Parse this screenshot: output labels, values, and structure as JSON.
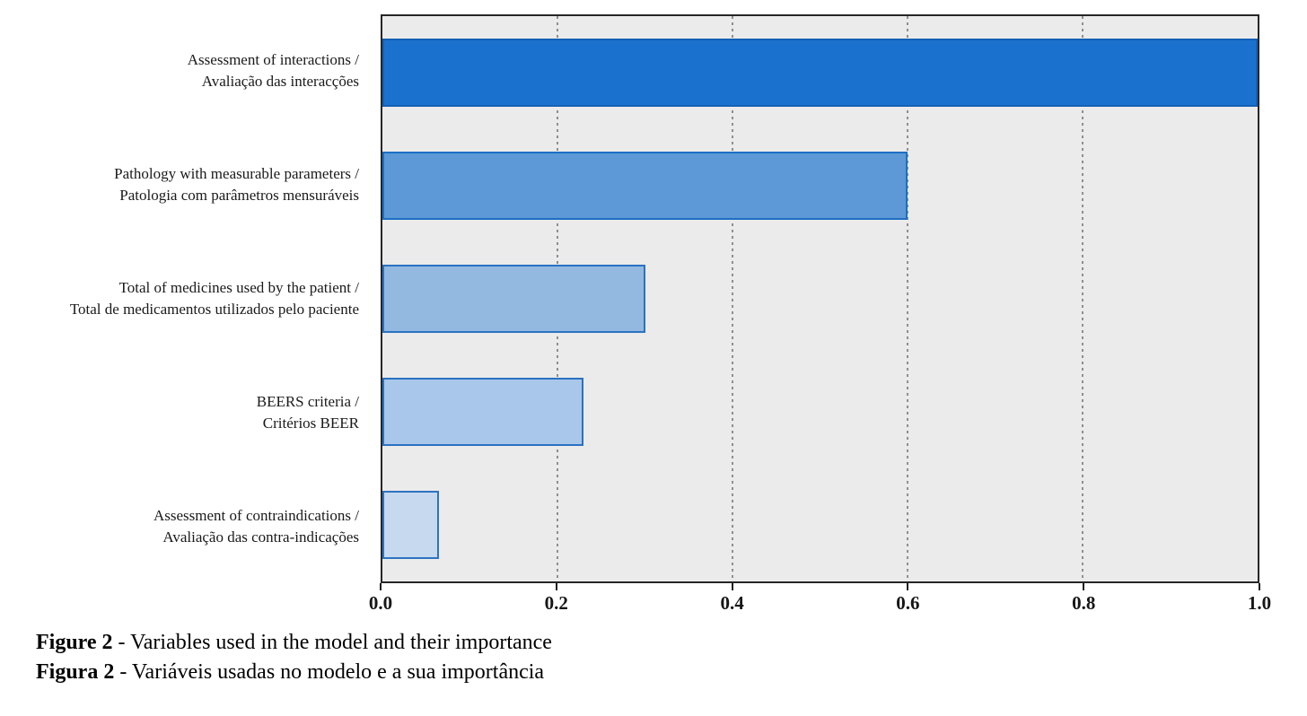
{
  "chart_data": {
    "type": "bar",
    "orientation": "horizontal",
    "title": "",
    "xlabel": "",
    "ylabel": "",
    "xlim": [
      0.0,
      1.0
    ],
    "xticks": [
      "0.0",
      "0.2",
      "0.4",
      "0.6",
      "0.8",
      "1.0"
    ],
    "grid": "vertical dashed gridlines at 0.2 intervals",
    "legend": "none",
    "plot_background": "#EBEBEB",
    "frame_color": "#262626",
    "categories": [
      [
        "Assessment of interactions /",
        "Avaliação das interacções"
      ],
      [
        "Pathology with measurable parameters /",
        "Patologia com parâmetros mensuráveis"
      ],
      [
        "Total of medicines used by the patient /",
        "Total de medicamentos utilizados pelo paciente"
      ],
      [
        "BEERS criteria /",
        "Critérios BEER"
      ],
      [
        "Assessment of contraindications /",
        "Avaliação das contra-indicações"
      ]
    ],
    "values": [
      1.0,
      0.6,
      0.3,
      0.23,
      0.065
    ],
    "bar_fill_colors": [
      "#1B72CE",
      "#5C99D6",
      "#93B9E1",
      "#A9C7EA",
      "#C6D9EF"
    ],
    "bar_border_colors": [
      "#1460B5",
      "#1C6FC4",
      "#2A72C2",
      "#2A72C2",
      "#2D73C1"
    ]
  },
  "caption": {
    "line1_bold": "Figure 2",
    "line1_rest": " - Variables used in the model and their importance",
    "line2_bold": "Figura 2",
    "line2_rest": " - Variáveis usadas no modelo e a sua importância"
  }
}
